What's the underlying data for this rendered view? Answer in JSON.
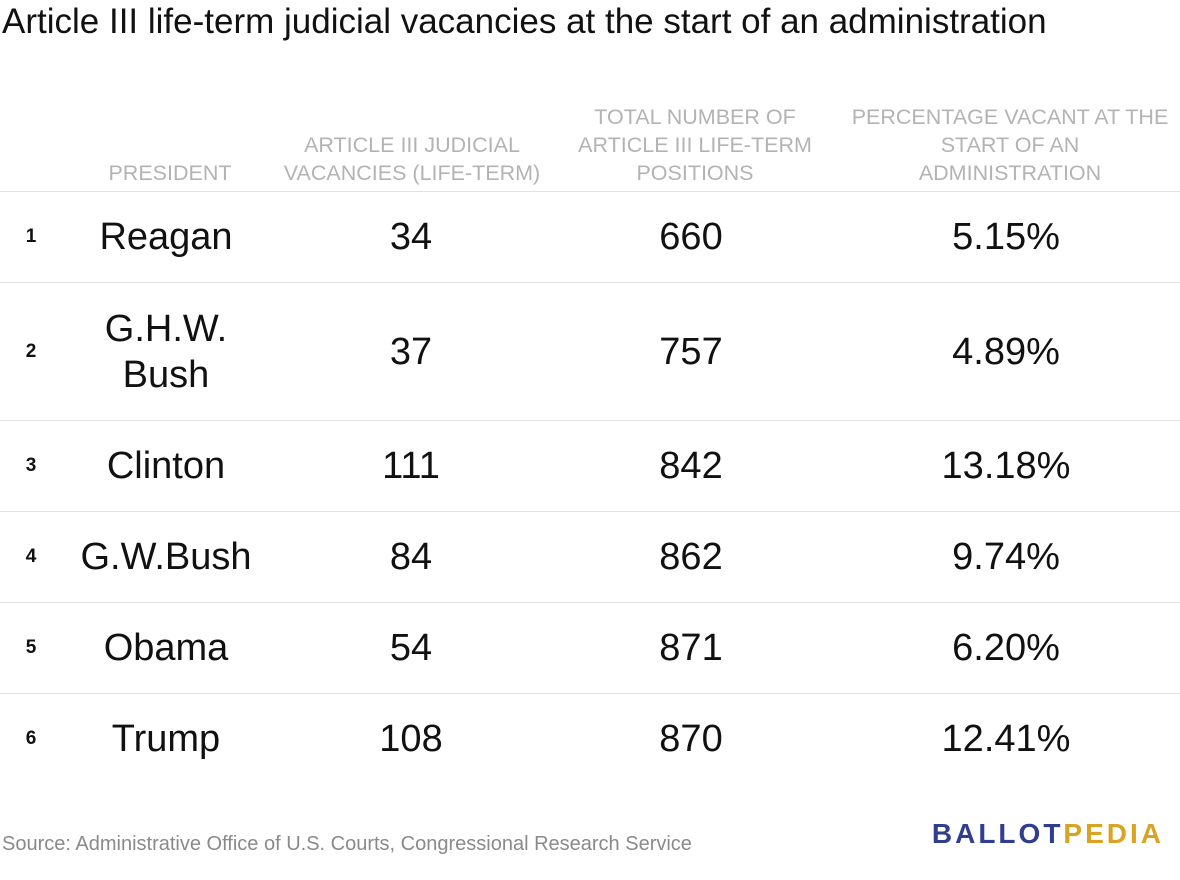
{
  "title": "Article III life-term judicial vacancies at the start of an administration",
  "columns": [
    "PRESIDENT",
    "ARTICLE III JUDICIAL\nVACANCIES (LIFE-TERM)",
    "TOTAL NUMBER OF\nARTICLE III LIFE-TERM\nPOSITIONS",
    "PERCENTAGE VACANT AT THE\nSTART OF AN\nADMINISTRATION"
  ],
  "rows": [
    {
      "rank": "1",
      "president": "Reagan",
      "vacancies": "34",
      "total": "660",
      "pct": "5.15%"
    },
    {
      "rank": "2",
      "president": "G.H.W.\nBush",
      "vacancies": "37",
      "total": "757",
      "pct": "4.89%"
    },
    {
      "rank": "3",
      "president": "Clinton",
      "vacancies": "111",
      "total": "842",
      "pct": "13.18%"
    },
    {
      "rank": "4",
      "president": "G.W.Bush",
      "vacancies": "84",
      "total": "862",
      "pct": "9.74%"
    },
    {
      "rank": "5",
      "president": "Obama",
      "vacancies": "54",
      "total": "871",
      "pct": "6.20%"
    },
    {
      "rank": "6",
      "president": "Trump",
      "vacancies": "108",
      "total": "870",
      "pct": "12.41%"
    }
  ],
  "source": "Source: Administrative Office of U.S. Courts, Congressional Research Service",
  "logo": {
    "part1": "BALLOT",
    "part2": "PEDIA"
  },
  "colors": {
    "logo_primary": "#2f3e8f",
    "logo_accent": "#d9a323",
    "header_text": "#b3b3b3",
    "source_text": "#8a8a8a"
  },
  "chart_data": {
    "type": "table",
    "title": "Article III life-term judicial vacancies at the start of an administration",
    "columns": [
      "President",
      "Article III judicial vacancies (life-term)",
      "Total number of Article III life-term positions",
      "Percentage vacant at the start of an administration"
    ],
    "categories": [
      "Reagan",
      "G.H.W. Bush",
      "Clinton",
      "G.W.Bush",
      "Obama",
      "Trump"
    ],
    "series": [
      {
        "name": "Article III judicial vacancies (life-term)",
        "values": [
          34,
          37,
          111,
          84,
          54,
          108
        ]
      },
      {
        "name": "Total number of Article III life-term positions",
        "values": [
          660,
          757,
          842,
          862,
          871,
          870
        ]
      },
      {
        "name": "Percentage vacant at the start of an administration",
        "values": [
          5.15,
          4.89,
          13.18,
          9.74,
          6.2,
          12.41
        ]
      }
    ]
  }
}
